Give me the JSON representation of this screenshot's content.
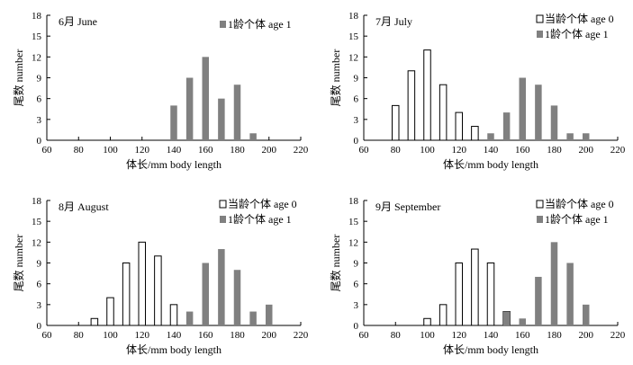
{
  "chart_data": [
    {
      "type": "bar",
      "title": "6月 June",
      "xlabel": "体长/mm body length",
      "ylabel": "尾数 number",
      "xlim": [
        60,
        220
      ],
      "xticks": [
        "60",
        "80",
        "100",
        "120",
        "140",
        "160",
        "180",
        "200",
        "220"
      ],
      "ylim": [
        0,
        18
      ],
      "yticks": [
        "0",
        "3",
        "6",
        "9",
        "12",
        "15",
        "18"
      ],
      "legend_position": "top-right",
      "series": [
        {
          "name": "1龄个体 age 1",
          "style": "filled",
          "color": "#808080",
          "x": [
            140,
            150,
            160,
            170,
            180,
            190
          ],
          "values": [
            5,
            9,
            12,
            6,
            8,
            1
          ]
        }
      ]
    },
    {
      "type": "bar",
      "title": "7月 July",
      "xlabel": "体长/mm body length",
      "ylabel": "尾数 number",
      "xlim": [
        60,
        220
      ],
      "xticks": [
        "60",
        "80",
        "100",
        "120",
        "140",
        "160",
        "180",
        "200",
        "220"
      ],
      "ylim": [
        0,
        18
      ],
      "yticks": [
        "0",
        "3",
        "6",
        "9",
        "12",
        "15",
        "18"
      ],
      "legend_position": "top-right",
      "series": [
        {
          "name": "当龄个体 age 0",
          "style": "hollow",
          "color": "#000000",
          "x": [
            80,
            90,
            100,
            110,
            120,
            130
          ],
          "values": [
            5,
            10,
            13,
            8,
            4,
            2
          ]
        },
        {
          "name": "1龄个体 age 1",
          "style": "filled",
          "color": "#808080",
          "x": [
            140,
            150,
            160,
            170,
            180,
            190,
            200
          ],
          "values": [
            1,
            4,
            9,
            8,
            5,
            1,
            1
          ]
        }
      ]
    },
    {
      "type": "bar",
      "title": "8月 August",
      "xlabel": "体长/mm body length",
      "ylabel": "尾数 number",
      "xlim": [
        60,
        220
      ],
      "xticks": [
        "60",
        "80",
        "100",
        "120",
        "140",
        "160",
        "180",
        "200",
        "220"
      ],
      "ylim": [
        0,
        18
      ],
      "yticks": [
        "0",
        "3",
        "6",
        "9",
        "12",
        "15",
        "18"
      ],
      "legend_position": "top-right",
      "series": [
        {
          "name": "当龄个体 age 0",
          "style": "hollow",
          "color": "#000000",
          "x": [
            90,
            100,
            110,
            120,
            130,
            140
          ],
          "values": [
            1,
            4,
            9,
            12,
            10,
            3
          ]
        },
        {
          "name": "1龄个体 age 1",
          "style": "filled",
          "color": "#808080",
          "x": [
            150,
            160,
            170,
            180,
            190,
            200
          ],
          "values": [
            2,
            9,
            11,
            8,
            2,
            3
          ]
        }
      ]
    },
    {
      "type": "bar",
      "title": "9月 September",
      "xlabel": "体长/mm body length",
      "ylabel": "尾数 number",
      "xlim": [
        60,
        220
      ],
      "xticks": [
        "60",
        "80",
        "100",
        "120",
        "140",
        "160",
        "180",
        "200",
        "220"
      ],
      "ylim": [
        0,
        18
      ],
      "yticks": [
        "0",
        "3",
        "6",
        "9",
        "12",
        "15",
        "18"
      ],
      "legend_position": "top-right",
      "series": [
        {
          "name": "当龄个体 age 0",
          "style": "hollow",
          "color": "#000000",
          "x": [
            100,
            110,
            120,
            130,
            140,
            150
          ],
          "values": [
            1,
            3,
            9,
            11,
            9,
            2
          ]
        },
        {
          "name": "1龄个体 age 1",
          "style": "filled",
          "color": "#808080",
          "x": [
            150,
            160,
            170,
            180,
            190,
            200
          ],
          "values": [
            2,
            1,
            7,
            12,
            9,
            3
          ]
        }
      ]
    }
  ]
}
